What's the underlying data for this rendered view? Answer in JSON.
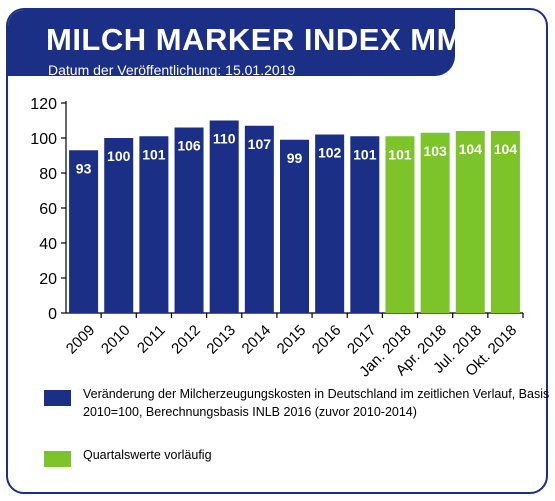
{
  "header": {
    "title": "MILCH MARKER INDEX MMI",
    "subtitle": "Datum der Veröffentlichung: 15.01.2019"
  },
  "colors": {
    "primary_blue": "#1b2f86",
    "provisional_green": "#7dc42a"
  },
  "legend": [
    {
      "label": "Veränderung der Milcherzeugungskosten in Deutschland im zeitlichen Verlauf, Basis 2010=100, Berechnungsbasis INLB 2016 (zuvor 2010-2014)",
      "color": "#1b2f86"
    },
    {
      "label": "Quartalswerte vorläufig",
      "color": "#7dc42a"
    }
  ],
  "chart_data": {
    "type": "bar",
    "title": "MILCH MARKER INDEX MMI",
    "subtitle": "Datum der Veröffentlichung: 15.01.2019",
    "xlabel": "",
    "ylabel": "",
    "categories": [
      "2009",
      "2010",
      "2011",
      "2012",
      "2013",
      "2014",
      "2015",
      "2016",
      "2017",
      "Jan. 2018",
      "Apr. 2018",
      "Jul. 2018",
      "Okt. 2018"
    ],
    "values": [
      93,
      100,
      101,
      106,
      110,
      107,
      99,
      102,
      101,
      101,
      103,
      104,
      104
    ],
    "value_labels": [
      "93",
      "100",
      "101",
      "106",
      "110",
      "107",
      "99",
      "102",
      "101",
      "101",
      "103",
      "104",
      "104"
    ],
    "bar_colors": [
      "#1b2f86",
      "#1b2f86",
      "#1b2f86",
      "#1b2f86",
      "#1b2f86",
      "#1b2f86",
      "#1b2f86",
      "#1b2f86",
      "#1b2f86",
      "#7dc42a",
      "#7dc42a",
      "#7dc42a",
      "#7dc42a"
    ],
    "ylim": [
      0,
      120
    ],
    "yticks": [
      "0",
      "20",
      "40",
      "60",
      "80",
      "100",
      "120"
    ],
    "grid": false,
    "legend_position": "bottom"
  }
}
